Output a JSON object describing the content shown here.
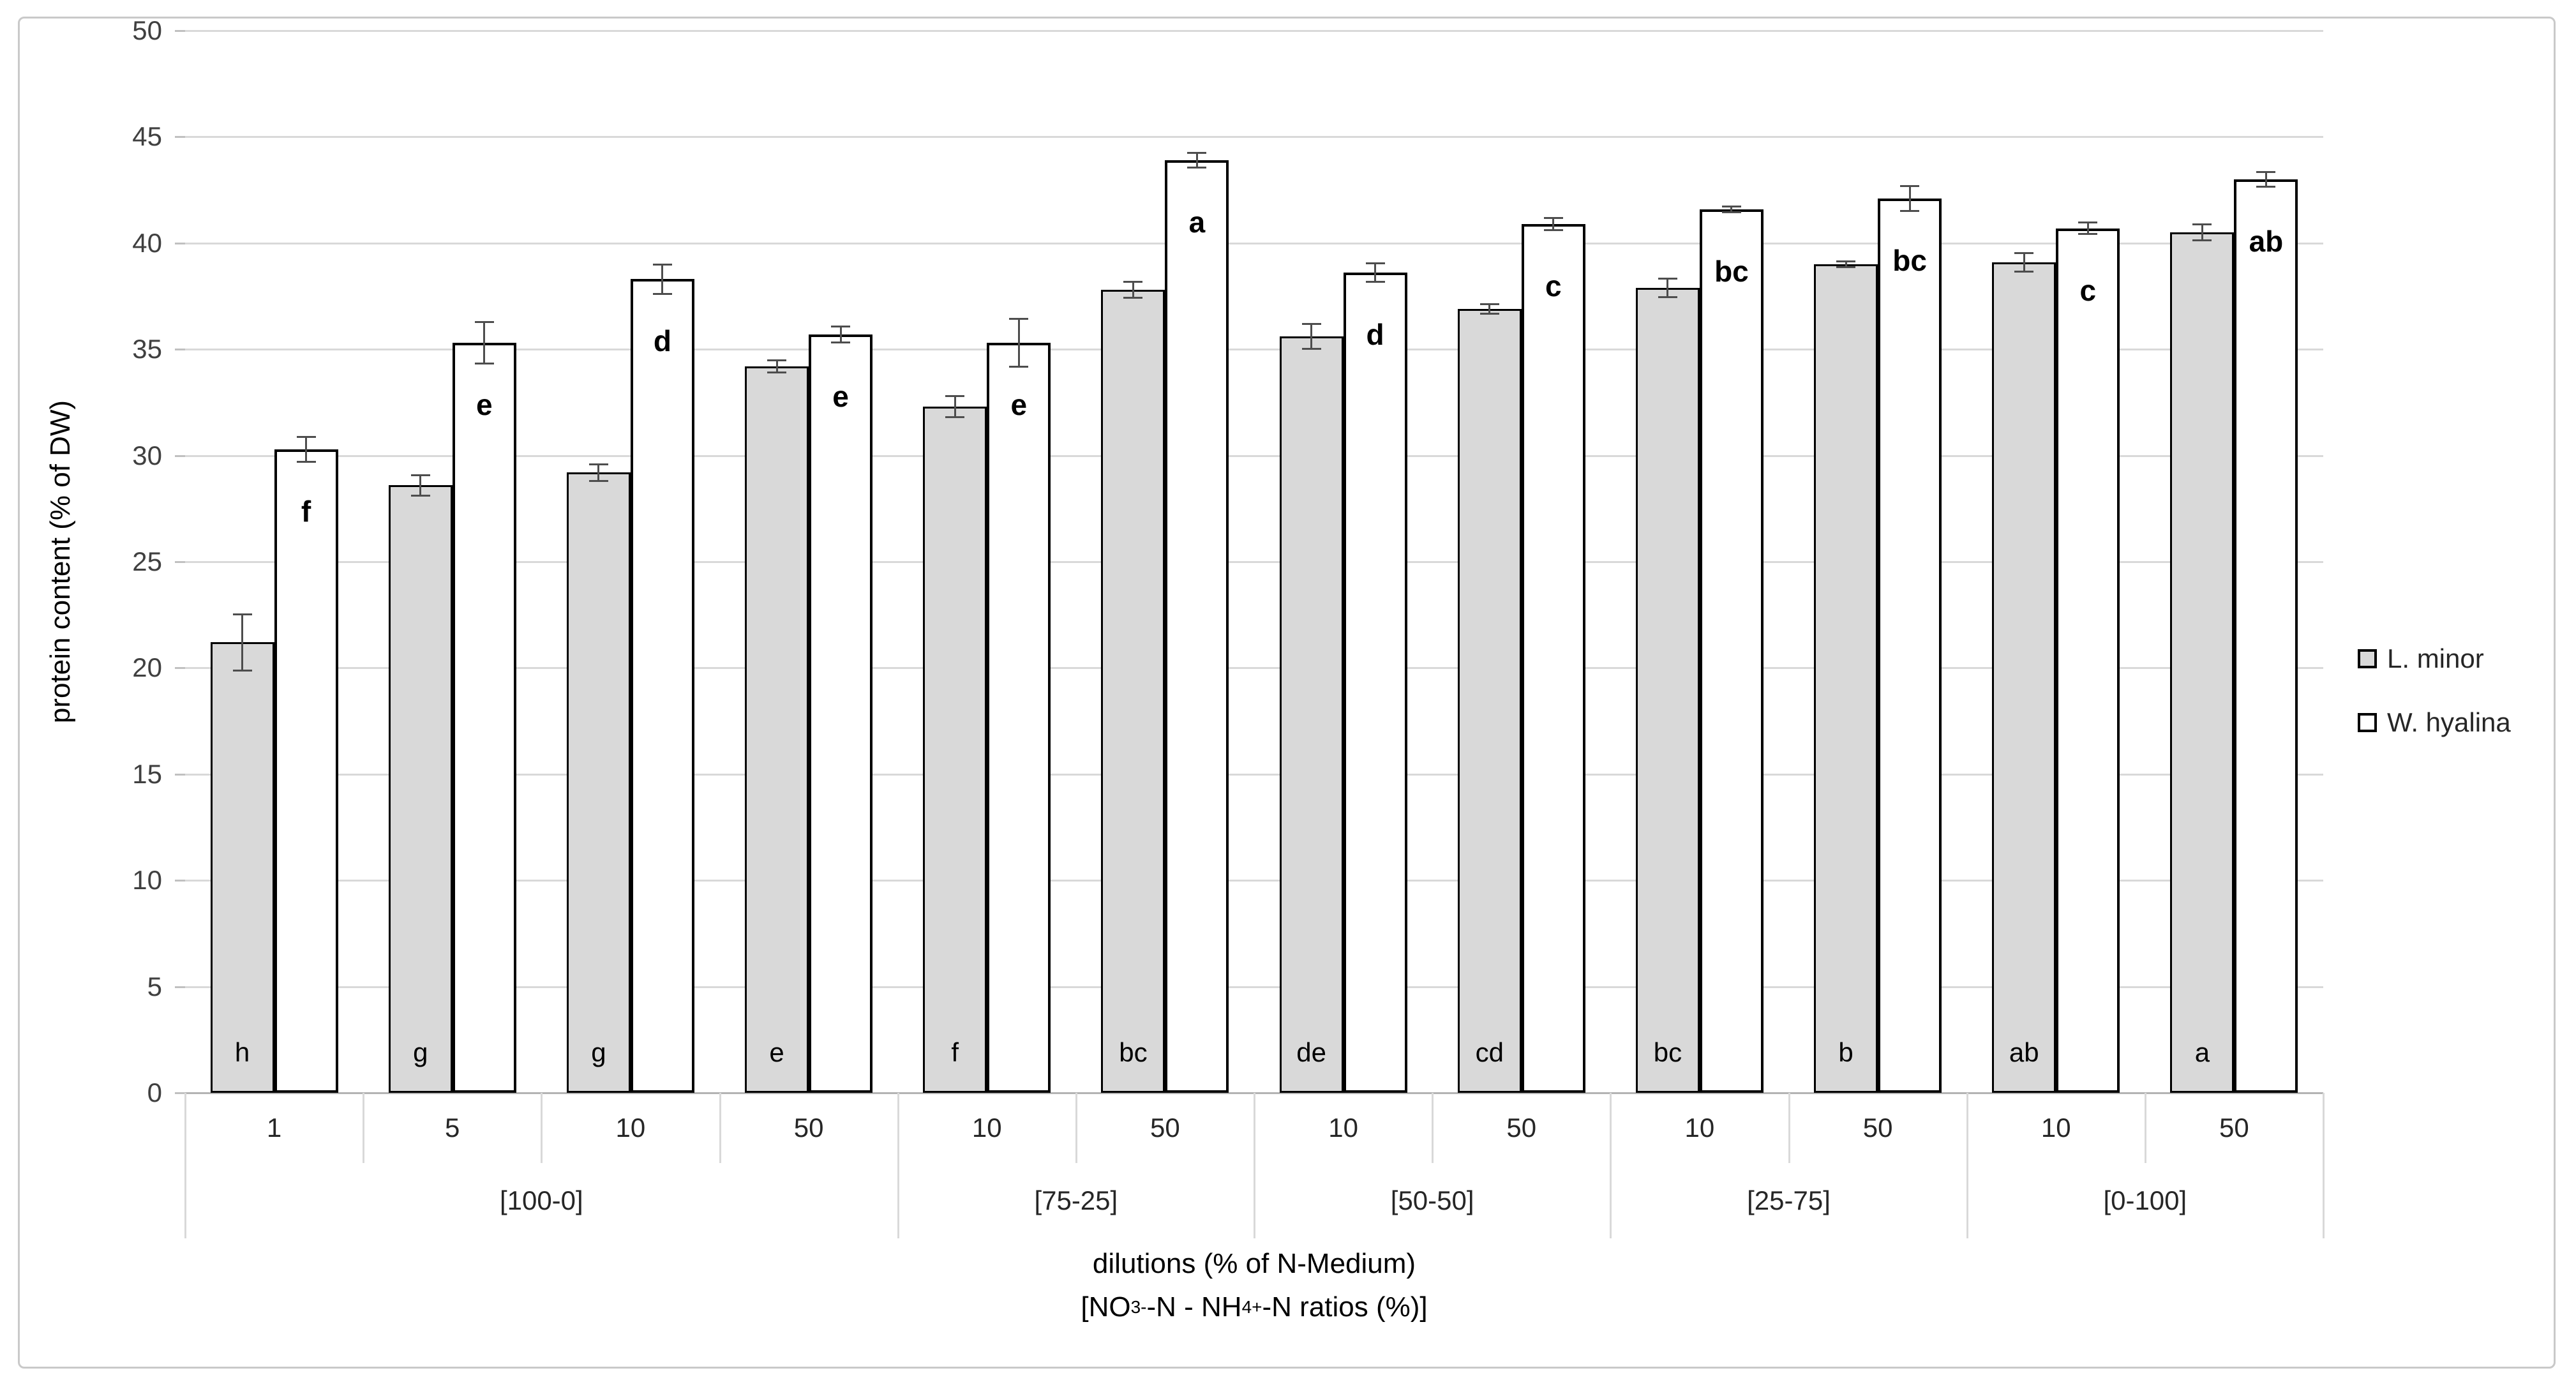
{
  "chart_data": {
    "type": "bar",
    "title": "",
    "ylabel": "protein content (% of DW)",
    "xlabel_line1": "dilutions (% of N-Medium)",
    "xlabel_line2_parts": [
      {
        "t": "[NO"
      },
      {
        "sub": "3"
      },
      {
        "sup": "-"
      },
      {
        "t": "-N - NH"
      },
      {
        "sub": "4"
      },
      {
        "sup": "+"
      },
      {
        "t": "-N ratios (%)]"
      }
    ],
    "ylim": [
      0,
      50
    ],
    "yticks": [
      0,
      5,
      10,
      15,
      20,
      25,
      30,
      35,
      40,
      45,
      50
    ],
    "grid": true,
    "legend_position": "right",
    "categories": [
      "1",
      "5",
      "10",
      "50",
      "10",
      "50",
      "10",
      "50",
      "10",
      "50",
      "10",
      "50"
    ],
    "groups": [
      {
        "label": "[100-0]",
        "span": 4
      },
      {
        "label": "[75-25]",
        "span": 2
      },
      {
        "label": "[50-50]",
        "span": 2
      },
      {
        "label": "[25-75]",
        "span": 2
      },
      {
        "label": "[0-100]",
        "span": 2
      }
    ],
    "series": [
      {
        "name": "L. minor",
        "fill": "#d9d9d9",
        "values": [
          21.2,
          28.6,
          29.2,
          34.2,
          32.3,
          37.8,
          35.6,
          36.9,
          37.9,
          39.0,
          39.1,
          40.5
        ],
        "errors": [
          1.35,
          0.5,
          0.4,
          0.3,
          0.5,
          0.4,
          0.6,
          0.25,
          0.45,
          0.15,
          0.45,
          0.4
        ],
        "letters": [
          "h",
          "g",
          "g",
          "e",
          "f",
          "bc",
          "de",
          "cd",
          "bc",
          "b",
          "ab",
          "a"
        ],
        "letter_position": "bottom"
      },
      {
        "name": "W. hyalina",
        "fill": "#ffffff",
        "values": [
          30.3,
          35.3,
          38.3,
          35.7,
          35.3,
          43.9,
          38.6,
          40.9,
          41.6,
          42.1,
          40.7,
          43.0
        ],
        "errors": [
          0.6,
          1.0,
          0.7,
          0.4,
          1.15,
          0.35,
          0.45,
          0.3,
          0.15,
          0.6,
          0.3,
          0.35
        ],
        "letters": [
          "f",
          "e",
          "d",
          "e",
          "e",
          "a",
          "d",
          "c",
          "bc",
          "bc",
          "c",
          "ab"
        ],
        "letter_position": "below-top"
      }
    ]
  },
  "legend": {
    "items": [
      {
        "label": "L. minor",
        "swatch": "#d9d9d9"
      },
      {
        "label": "W. hyalina",
        "swatch": "#ffffff"
      }
    ]
  },
  "colors": {
    "bar_border": "#000000",
    "grid": "#d9d9d9",
    "axis_line": "#b3b3b3",
    "error_bar": "#4d4d4d",
    "y_tick_text": "#404040",
    "x_tick_text": "#262626",
    "text": "#000000",
    "figure_border": "#c9c9c9"
  }
}
